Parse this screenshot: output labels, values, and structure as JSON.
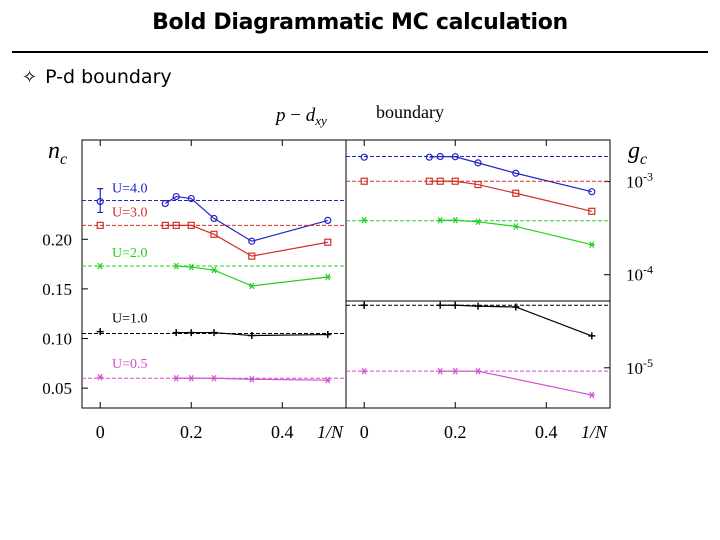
{
  "slide": {
    "title": "Bold Diagrammatic MC calculation",
    "bullet_symbol": "✧",
    "bullet_text": "P-d boundary"
  },
  "chart_data": [
    {
      "type": "line",
      "title": "p − d_xy  boundary",
      "xlabel": "1/N",
      "ylabel": "n_c",
      "xlim": [
        -0.04,
        0.54
      ],
      "ylim": [
        0.03,
        0.3
      ],
      "xticks": [
        0,
        0.2,
        0.4
      ],
      "xtick_labels": [
        "0",
        "0.2",
        "0.4"
      ],
      "yticks": [
        0.05,
        0.1,
        0.15,
        0.2
      ],
      "ytick_labels": [
        "0.05",
        "0.10",
        "0.15",
        "0.20"
      ],
      "series": [
        {
          "name": "U=4.0",
          "color": "#2323c8",
          "marker": "circle",
          "x": [
            0,
            0.143,
            0.167,
            0.2,
            0.25,
            0.333,
            0.5
          ],
          "y": [
            0.238,
            0.236,
            0.243,
            0.241,
            0.221,
            0.198,
            0.219
          ],
          "limit": 0.239
        },
        {
          "name": "U=3.0",
          "color": "#d03028",
          "marker": "square",
          "x": [
            0,
            0.143,
            0.167,
            0.2,
            0.25,
            0.333,
            0.5
          ],
          "y": [
            0.214,
            0.214,
            0.214,
            0.214,
            0.205,
            0.183,
            0.197
          ],
          "limit": 0.214
        },
        {
          "name": "U=2.0",
          "color": "#20d020",
          "marker": "star",
          "x": [
            0,
            0.167,
            0.2,
            0.25,
            0.333,
            0.5
          ],
          "y": [
            0.173,
            0.173,
            0.172,
            0.169,
            0.153,
            0.162
          ],
          "limit": 0.173
        },
        {
          "name": "U=1.0",
          "color": "#000000",
          "marker": "plus",
          "x": [
            0,
            0.167,
            0.2,
            0.25,
            0.333,
            0.5
          ],
          "y": [
            0.107,
            0.106,
            0.106,
            0.106,
            0.103,
            0.104
          ],
          "limit": 0.105
        },
        {
          "name": "U=0.5",
          "color": "#d050d0",
          "marker": "star",
          "x": [
            0,
            0.167,
            0.2,
            0.25,
            0.333,
            0.5
          ],
          "y": [
            0.061,
            0.06,
            0.06,
            0.06,
            0.059,
            0.058
          ],
          "limit": 0.06
        }
      ]
    },
    {
      "type": "line",
      "xlabel": "1/N",
      "ylabel": "g_c",
      "yscale": "log",
      "xlim": [
        -0.04,
        0.54
      ],
      "ylim": [
        3.7e-06,
        0.0028
      ],
      "xticks": [
        0,
        0.2,
        0.4
      ],
      "xtick_labels": [
        "0",
        "0.2",
        "0.4"
      ],
      "yticks": [
        0.001,
        0.0001,
        1e-05
      ],
      "ytick_labels": [
        "10-3",
        "10-4",
        "10-5"
      ],
      "series": [
        {
          "name": "U=4.0",
          "color": "#2323c8",
          "marker": "circle",
          "x": [
            0,
            0.143,
            0.167,
            0.2,
            0.25,
            0.333,
            0.5
          ],
          "y": [
            0.00183,
            0.00183,
            0.00186,
            0.00185,
            0.00159,
            0.00123,
            0.00078
          ],
          "limit": 0.00186
        },
        {
          "name": "U=3.0",
          "color": "#d03028",
          "marker": "square",
          "x": [
            0,
            0.143,
            0.167,
            0.2,
            0.25,
            0.333,
            0.5
          ],
          "y": [
            0.00101,
            0.00101,
            0.00101,
            0.00101,
            0.00093,
            0.00075,
            0.00048
          ],
          "limit": 0.00101
        },
        {
          "name": "U=2.0",
          "color": "#20d020",
          "marker": "star",
          "x": [
            0,
            0.167,
            0.2,
            0.25,
            0.333,
            0.5
          ],
          "y": [
            0.000385,
            0.000385,
            0.000385,
            0.00037,
            0.00033,
            0.00021
          ],
          "limit": 0.00038
        },
        {
          "name": "U=1.0",
          "color": "#000000",
          "marker": "plus",
          "x": [
            0,
            0.167,
            0.2,
            0.25,
            0.333,
            0.5
          ],
          "y": [
            4.7e-05,
            4.7e-05,
            4.7e-05,
            4.6e-05,
            4.5e-05,
            2.2e-05
          ],
          "limit": 4.7e-05
        },
        {
          "name": "U=0.5",
          "color": "#d050d0",
          "marker": "star",
          "x": [
            0,
            0.167,
            0.2,
            0.25,
            0.5
          ],
          "y": [
            9.2e-06,
            9.2e-06,
            9.2e-06,
            9.2e-06,
            5.1e-06
          ],
          "limit": 9.2e-06
        }
      ]
    }
  ],
  "labels": {
    "header_p": "p",
    "header_minus": " − ",
    "header_d": "d",
    "header_sub": "xy",
    "header_word": "boundary",
    "left_ylabel_main": "n",
    "left_ylabel_sub": "c",
    "right_ylabel_main": "g",
    "right_ylabel_sub": "c",
    "right_tick_base": "10",
    "right_tick_exps": [
      "-3",
      "-4",
      "-5"
    ]
  }
}
